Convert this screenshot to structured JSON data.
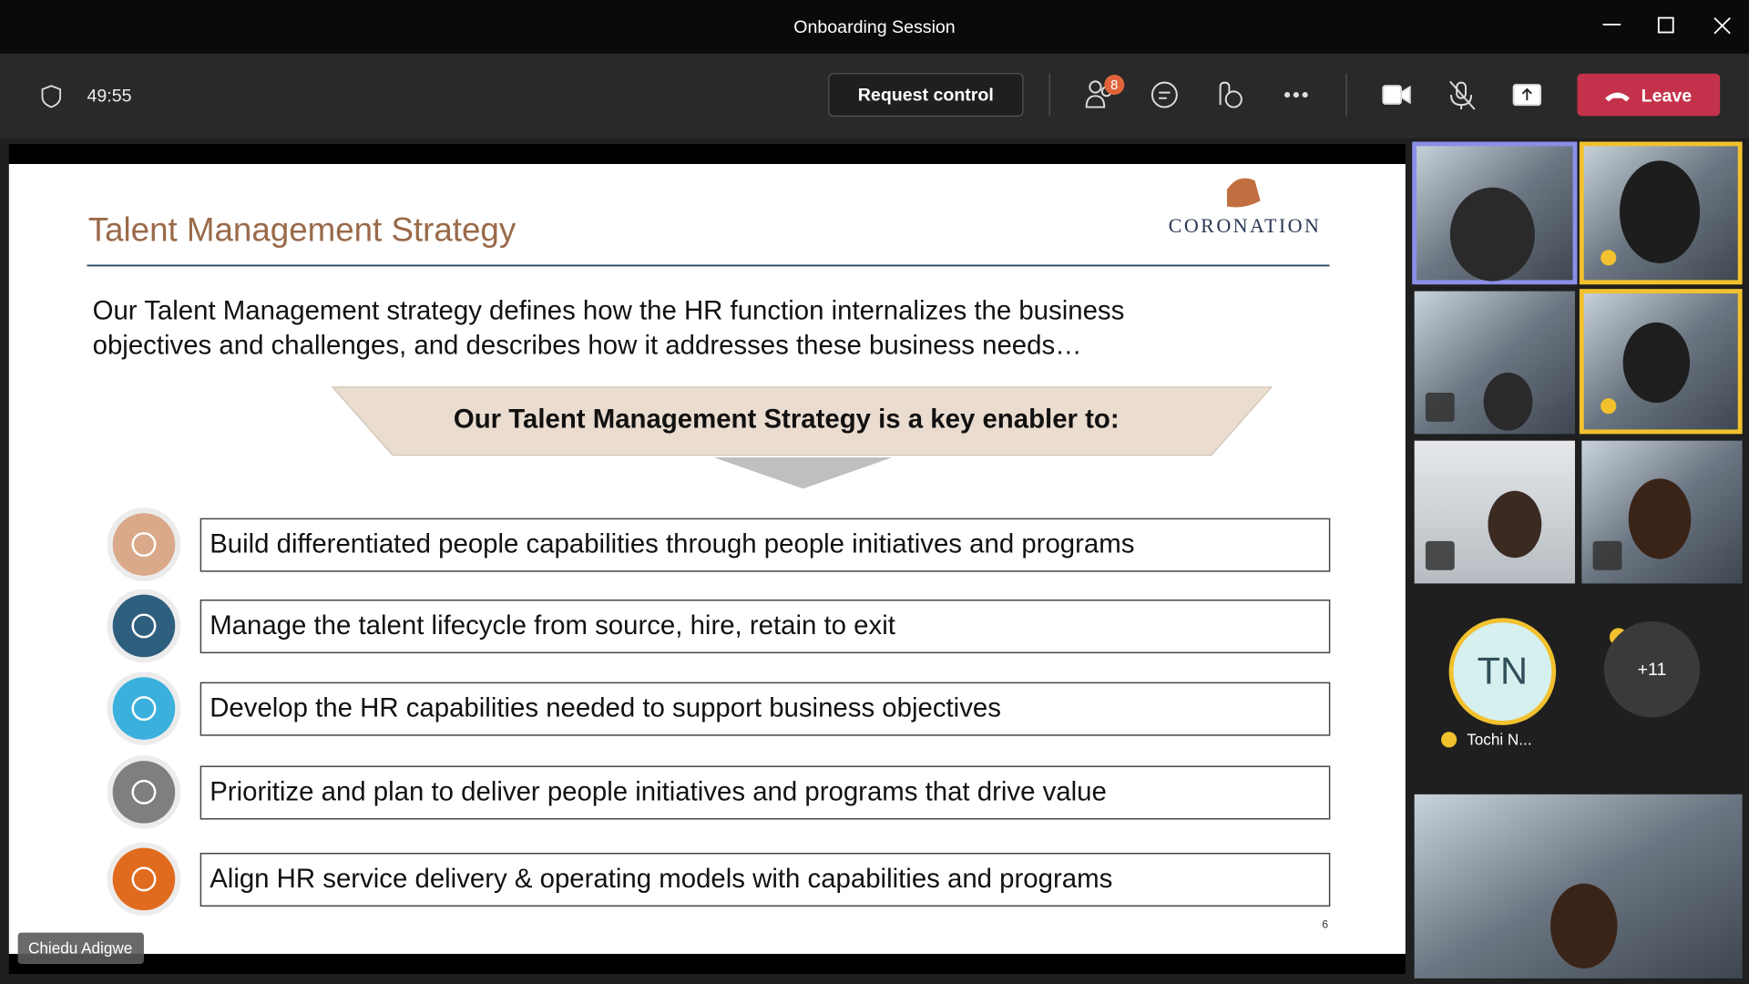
{
  "window": {
    "title": "Onboarding Session"
  },
  "toolbar": {
    "timer": "49:55",
    "request_control": "Request control",
    "participants_badge": "8",
    "leave": "Leave"
  },
  "slide": {
    "title": "Talent Management Strategy",
    "logo": "CORONATION",
    "intro": [
      "Our Talent Management strategy defines how the HR function internalizes the business",
      "objectives and challenges, and describes how it addresses these business needs…"
    ],
    "banner": "Our Talent Management Strategy is a key enabler to:",
    "items": [
      "Build differentiated people capabilities through people initiatives and programs",
      "Manage the talent lifecycle from source, hire, retain to exit",
      "Develop the HR capabilities needed to support business objectives",
      "Prioritize and plan to deliver people initiatives and programs that drive value",
      "Align HR service delivery & operating models with capabilities and programs"
    ],
    "page_number": "6"
  },
  "presenter": "Chiedu Adigwe",
  "participants": {
    "avatar_initials": "TN",
    "avatar_name": "Tochi N...",
    "more": "+11"
  }
}
